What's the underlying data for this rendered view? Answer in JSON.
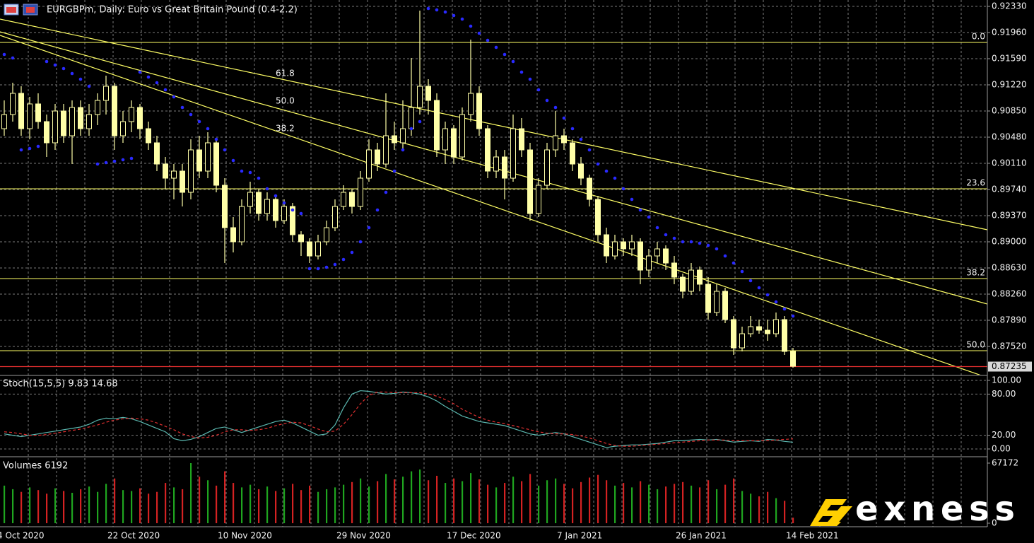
{
  "logo": "exness",
  "chart_data": [
    {
      "type": "candlestick",
      "title": "EURGBPm, Daily:  Euro vs Great Britain Pound (0.4-2.2)",
      "categories": [
        "4 Oct 2020",
        null,
        null,
        null,
        null,
        null,
        null,
        null,
        null,
        null,
        null,
        null,
        null,
        "22 Oct 2020",
        null,
        null,
        null,
        null,
        null,
        null,
        null,
        null,
        null,
        null,
        null,
        null,
        "10 Nov 2020",
        null,
        null,
        null,
        null,
        null,
        null,
        null,
        null,
        null,
        null,
        null,
        null,
        null,
        "29 Nov 2020",
        null,
        null,
        null,
        null,
        null,
        null,
        null,
        null,
        null,
        null,
        null,
        null,
        "17 Dec 2020",
        null,
        null,
        null,
        null,
        null,
        null,
        null,
        null,
        null,
        null,
        null,
        null,
        "7 Jan 2021",
        null,
        null,
        null,
        null,
        null,
        null,
        null,
        null,
        null,
        null,
        null,
        null,
        null,
        "26 Jan 2021",
        null,
        null,
        null,
        null,
        null,
        null,
        null,
        null,
        null,
        null,
        null,
        null,
        "14 Feb 2021"
      ],
      "open": [
        0.906,
        0.908,
        0.911,
        0.906,
        0.9095,
        0.907,
        0.904,
        0.9085,
        0.905,
        0.909,
        0.906,
        0.908,
        0.91,
        0.912,
        0.905,
        0.907,
        0.909,
        0.906,
        0.904,
        0.901,
        0.899,
        0.9,
        0.897,
        0.903,
        0.9,
        0.904,
        0.898,
        0.892,
        0.89,
        0.895,
        0.897,
        0.894,
        0.896,
        0.893,
        0.895,
        0.891,
        0.89,
        0.888,
        0.89,
        0.892,
        0.895,
        0.897,
        0.895,
        0.899,
        0.903,
        0.901,
        0.905,
        0.904,
        0.906,
        0.909,
        0.912,
        0.91,
        0.903,
        0.906,
        0.902,
        0.908,
        0.911,
        0.906,
        0.9,
        0.902,
        0.899,
        0.906,
        0.903,
        0.894,
        0.898,
        0.903,
        0.905,
        0.904,
        0.901,
        0.899,
        0.896,
        0.891,
        0.888,
        0.89,
        0.889,
        0.89,
        0.886,
        0.888,
        0.889,
        0.887,
        0.885,
        0.883,
        0.886,
        0.884,
        0.88,
        0.883,
        0.879,
        0.875,
        0.877,
        0.878,
        0.8775,
        0.877,
        0.879,
        0.8745
      ],
      "high": [
        0.91,
        0.9125,
        0.912,
        0.9105,
        0.911,
        0.908,
        0.9095,
        0.9095,
        0.91,
        0.91,
        0.9095,
        0.911,
        0.9135,
        0.9125,
        0.9085,
        0.91,
        0.9095,
        0.907,
        0.905,
        0.902,
        0.901,
        0.901,
        0.9045,
        0.905,
        0.9055,
        0.9045,
        0.899,
        0.8935,
        0.896,
        0.8985,
        0.8975,
        0.897,
        0.8965,
        0.896,
        0.8955,
        0.8915,
        0.8905,
        0.891,
        0.893,
        0.896,
        0.898,
        0.8975,
        0.9,
        0.9045,
        0.904,
        0.911,
        0.907,
        0.91,
        0.916,
        0.9227,
        0.913,
        0.911,
        0.907,
        0.9065,
        0.909,
        0.9186,
        0.912,
        0.9065,
        0.903,
        0.903,
        0.908,
        0.9075,
        0.904,
        0.899,
        0.904,
        0.9085,
        0.906,
        0.9045,
        0.902,
        0.8995,
        0.8965,
        0.892,
        0.891,
        0.8905,
        0.891,
        0.8905,
        0.889,
        0.89,
        0.8895,
        0.888,
        0.8855,
        0.887,
        0.8865,
        0.885,
        0.884,
        0.8835,
        0.8795,
        0.878,
        0.8795,
        0.879,
        0.879,
        0.88,
        0.8795,
        0.875
      ],
      "low": [
        0.905,
        0.907,
        0.905,
        0.9045,
        0.906,
        0.902,
        0.903,
        0.904,
        0.901,
        0.905,
        0.905,
        0.9065,
        0.908,
        0.903,
        0.904,
        0.9055,
        0.9045,
        0.903,
        0.9,
        0.8975,
        0.896,
        0.895,
        0.896,
        0.899,
        0.899,
        0.897,
        0.887,
        0.8885,
        0.8895,
        0.894,
        0.893,
        0.893,
        0.892,
        0.8925,
        0.89,
        0.888,
        0.887,
        0.8875,
        0.8895,
        0.8915,
        0.8945,
        0.894,
        0.8945,
        0.8985,
        0.9,
        0.9005,
        0.903,
        0.903,
        0.905,
        0.908,
        0.908,
        0.902,
        0.901,
        0.901,
        0.9015,
        0.907,
        0.905,
        0.899,
        0.899,
        0.896,
        0.8985,
        0.902,
        0.893,
        0.8935,
        0.8975,
        0.902,
        0.903,
        0.9,
        0.898,
        0.895,
        0.89,
        0.887,
        0.8875,
        0.888,
        0.888,
        0.884,
        0.885,
        0.887,
        0.886,
        0.884,
        0.882,
        0.8825,
        0.883,
        0.879,
        0.8795,
        0.8785,
        0.874,
        0.8745,
        0.8765,
        0.877,
        0.876,
        0.8765,
        0.874,
        0.8722
      ],
      "close": [
        0.908,
        0.911,
        0.906,
        0.9095,
        0.907,
        0.904,
        0.9085,
        0.905,
        0.909,
        0.906,
        0.908,
        0.91,
        0.912,
        0.905,
        0.907,
        0.909,
        0.906,
        0.904,
        0.901,
        0.899,
        0.9,
        0.897,
        0.903,
        0.9,
        0.904,
        0.898,
        0.892,
        0.89,
        0.895,
        0.897,
        0.894,
        0.896,
        0.893,
        0.895,
        0.891,
        0.89,
        0.888,
        0.89,
        0.892,
        0.895,
        0.897,
        0.895,
        0.899,
        0.903,
        0.901,
        0.905,
        0.904,
        0.906,
        0.909,
        0.912,
        0.91,
        0.903,
        0.906,
        0.902,
        0.908,
        0.911,
        0.906,
        0.9,
        0.902,
        0.899,
        0.906,
        0.903,
        0.894,
        0.898,
        0.903,
        0.905,
        0.904,
        0.901,
        0.899,
        0.896,
        0.891,
        0.888,
        0.89,
        0.889,
        0.89,
        0.886,
        0.888,
        0.889,
        0.887,
        0.885,
        0.883,
        0.886,
        0.884,
        0.88,
        0.883,
        0.879,
        0.875,
        0.877,
        0.878,
        0.8775,
        0.877,
        0.879,
        0.8745,
        0.8724
      ],
      "up_color": "#000000",
      "down_color": "#ffffa8",
      "wick_color": "#ffffa8",
      "ylim": [
        0.8712,
        0.9242
      ],
      "yticks": [
        {
          "value": 0.9233,
          "label": "0.92330"
        },
        {
          "value": 0.9196,
          "label": "0.91960"
        },
        {
          "value": 0.9159,
          "label": "0.91590"
        },
        {
          "value": 0.9122,
          "label": "0.91220"
        },
        {
          "value": 0.9085,
          "label": "0.90850"
        },
        {
          "value": 0.9048,
          "label": "0.90480"
        },
        {
          "value": 0.9011,
          "label": "0.90110"
        },
        {
          "value": 0.8974,
          "label": "0.89740"
        },
        {
          "value": 0.8937,
          "label": "0.89370"
        },
        {
          "value": 0.89,
          "label": "0.89000"
        },
        {
          "value": 0.8863,
          "label": "0.88630"
        },
        {
          "value": 0.8826,
          "label": "0.88260"
        },
        {
          "value": 0.8789,
          "label": "0.87890"
        },
        {
          "value": 0.8752,
          "label": "0.87520"
        }
      ],
      "grid": true,
      "current_price": 0.87235,
      "current_price_color": "#e83030",
      "sar": {
        "color": "#2a2aff",
        "values": [
          0.9165,
          0.916,
          0.903,
          0.9032,
          0.9035,
          0.9155,
          0.915,
          0.9145,
          0.9138,
          0.913,
          0.912,
          0.901,
          0.9012,
          0.9014,
          0.9016,
          0.9018,
          0.914,
          0.9133,
          0.9125,
          0.9115,
          0.9105,
          0.909,
          0.908,
          0.907,
          0.906,
          0.9045,
          0.903,
          0.9015,
          0.9,
          0.8998,
          0.899,
          0.8975,
          0.8965,
          0.8955,
          0.8945,
          0.894,
          0.8862,
          0.8862,
          0.8864,
          0.8868,
          0.8875,
          0.8885,
          0.89,
          0.892,
          0.8945,
          0.897,
          0.9,
          0.903,
          0.906,
          0.907,
          0.923,
          0.9228,
          0.9225,
          0.922,
          0.9215,
          0.9205,
          0.9195,
          0.9185,
          0.9175,
          0.9165,
          0.9155,
          0.914,
          0.913,
          0.9115,
          0.91,
          0.909,
          0.9075,
          0.906,
          0.9045,
          0.903,
          0.901,
          0.9,
          0.899,
          0.8975,
          0.896,
          0.8945,
          0.8935,
          0.892,
          0.891,
          0.8905,
          0.89,
          0.89,
          0.8898,
          0.8895,
          0.889,
          0.888,
          0.887,
          0.8858,
          0.8845,
          0.8835,
          0.8825,
          0.8815,
          0.8805,
          0.8795
        ]
      },
      "fib_color": "#ffff66",
      "fib_levels": [
        {
          "label": "0.0",
          "value": 0.9182
        },
        {
          "label": "23.6",
          "value": 0.8975
        },
        {
          "label": "38.2",
          "value": 0.8848
        },
        {
          "label": "50.0",
          "value": 0.8746
        }
      ],
      "fan_labels": [
        "61.8",
        "50.0",
        "38.2"
      ],
      "trendlines": [
        {
          "values": [
            0.9215,
            0.8917
          ]
        },
        {
          "values": [
            0.9197,
            0.8812
          ]
        },
        {
          "values": [
            0.9192,
            0.8708
          ]
        }
      ]
    },
    {
      "type": "line",
      "title": "Stoch(15,5,5) 9.83 14.68",
      "series": [
        {
          "color": "#5bb8b0",
          "values": [
            22,
            20,
            18,
            20,
            22,
            24,
            26,
            28,
            30,
            32,
            36,
            42,
            45,
            44,
            46,
            44,
            40,
            35,
            30,
            25,
            15,
            12,
            14,
            18,
            24,
            30,
            32,
            28,
            24,
            28,
            32,
            36,
            40,
            42,
            38,
            32,
            26,
            20,
            22,
            35,
            60,
            80,
            85,
            84,
            82,
            80,
            81,
            83,
            82,
            80,
            76,
            70,
            62,
            55,
            48,
            44,
            40,
            38,
            36,
            34,
            30,
            26,
            22,
            20,
            22,
            24,
            22,
            18,
            14,
            10,
            6,
            2,
            4,
            5,
            6,
            6,
            7,
            8,
            10,
            12,
            12,
            13,
            14,
            13,
            14,
            12,
            10,
            11,
            12,
            11,
            14,
            13,
            11,
            9.83
          ]
        },
        {
          "color": "#e03030",
          "dashed": true,
          "values": [
            25,
            24,
            22,
            20,
            20,
            21,
            23,
            25,
            27,
            29,
            32,
            35,
            39,
            42,
            44,
            45,
            44,
            42,
            38,
            33,
            28,
            22,
            18,
            16,
            17,
            20,
            25,
            28,
            28,
            27,
            28,
            30,
            34,
            37,
            39,
            38,
            34,
            29,
            25,
            26,
            36,
            50,
            66,
            78,
            83,
            83,
            82,
            82,
            82,
            82,
            80,
            77,
            72,
            66,
            58,
            52,
            46,
            42,
            39,
            37,
            34,
            31,
            28,
            25,
            23,
            22,
            22,
            21,
            19,
            16,
            12,
            8,
            5,
            4,
            4,
            5,
            6,
            7,
            8,
            9,
            10,
            11,
            12,
            13,
            13,
            13,
            12,
            12,
            12,
            12,
            12,
            13,
            14,
            14.68
          ]
        }
      ],
      "ylim": [
        0,
        100
      ],
      "yticks": [
        {
          "value": 100,
          "label": "100.00"
        },
        {
          "value": 80,
          "label": "80.00"
        },
        {
          "value": 20,
          "label": "20.00"
        },
        {
          "value": 0,
          "label": "0.00"
        }
      ],
      "grid": true
    },
    {
      "type": "bar",
      "title": "Volumes 6192",
      "values": [
        42000,
        38000,
        35000,
        40000,
        37000,
        33000,
        39000,
        36000,
        34000,
        38000,
        41000,
        35000,
        44000,
        50000,
        37000,
        36000,
        39000,
        33000,
        35000,
        45000,
        40000,
        38000,
        67172,
        52000,
        48000,
        42000,
        58000,
        45000,
        40000,
        43000,
        38000,
        41000,
        36000,
        39000,
        44000,
        37000,
        42000,
        35000,
        38000,
        40000,
        43000,
        46000,
        50000,
        41000,
        47000,
        55000,
        49000,
        52000,
        58000,
        60000,
        48000,
        53000,
        45000,
        50000,
        47000,
        56000,
        49000,
        43000,
        40000,
        45000,
        52000,
        47000,
        55000,
        42000,
        48000,
        50000,
        44000,
        39000,
        46000,
        51000,
        54000,
        48000,
        42000,
        45000,
        40000,
        47000,
        43000,
        38000,
        41000,
        44000,
        46000,
        42000,
        40000,
        48000,
        38000,
        43000,
        50000,
        36000,
        33000,
        30000,
        35000,
        28000,
        25000,
        6192
      ],
      "up_color": "#1fa51f",
      "down_color": "#d42222",
      "ylim": [
        0,
        67172
      ],
      "yticks": [
        67172,
        0
      ]
    }
  ]
}
